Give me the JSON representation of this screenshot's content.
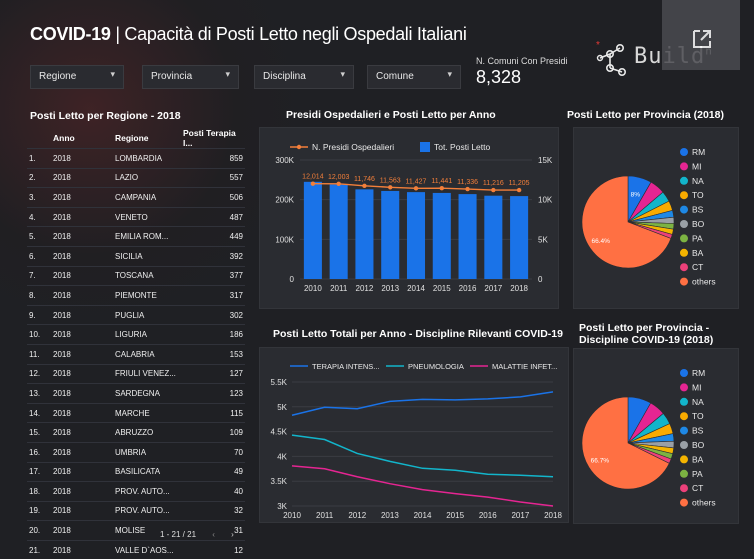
{
  "header": {
    "title_bold": "COVID-19",
    "title_rest": " | Capacità di Posti Letto negli Ospedali Italiani",
    "kpi_label": "N. Comuni Con Presidi",
    "kpi_value": "8,328",
    "logo_text": "Build",
    "logo_superscript": "n"
  },
  "filters": [
    {
      "label": "Regione"
    },
    {
      "label": "Provincia"
    },
    {
      "label": "Disciplina"
    },
    {
      "label": "Comune"
    }
  ],
  "table": {
    "title": "Posti Letto per Regione - 2018",
    "columns": [
      "Anno",
      "Regione",
      "Posti Terapia I..."
    ],
    "rows": [
      {
        "idx": "1.",
        "anno": "2018",
        "regione": "LOMBARDIA",
        "posti": "859"
      },
      {
        "idx": "2.",
        "anno": "2018",
        "regione": "LAZIO",
        "posti": "557"
      },
      {
        "idx": "3.",
        "anno": "2018",
        "regione": "CAMPANIA",
        "posti": "506"
      },
      {
        "idx": "4.",
        "anno": "2018",
        "regione": "VENETO",
        "posti": "487"
      },
      {
        "idx": "5.",
        "anno": "2018",
        "regione": "EMILIA ROM...",
        "posti": "449"
      },
      {
        "idx": "6.",
        "anno": "2018",
        "regione": "SICILIA",
        "posti": "392"
      },
      {
        "idx": "7.",
        "anno": "2018",
        "regione": "TOSCANA",
        "posti": "377"
      },
      {
        "idx": "8.",
        "anno": "2018",
        "regione": "PIEMONTE",
        "posti": "317"
      },
      {
        "idx": "9.",
        "anno": "2018",
        "regione": "PUGLIA",
        "posti": "302"
      },
      {
        "idx": "10.",
        "anno": "2018",
        "regione": "LIGURIA",
        "posti": "186"
      },
      {
        "idx": "11.",
        "anno": "2018",
        "regione": "CALABRIA",
        "posti": "153"
      },
      {
        "idx": "12.",
        "anno": "2018",
        "regione": "FRIULI VENEZ...",
        "posti": "127"
      },
      {
        "idx": "13.",
        "anno": "2018",
        "regione": "SARDEGNA",
        "posti": "123"
      },
      {
        "idx": "14.",
        "anno": "2018",
        "regione": "MARCHE",
        "posti": "115"
      },
      {
        "idx": "15.",
        "anno": "2018",
        "regione": "ABRUZZO",
        "posti": "109"
      },
      {
        "idx": "16.",
        "anno": "2018",
        "regione": "UMBRIA",
        "posti": "70"
      },
      {
        "idx": "17.",
        "anno": "2018",
        "regione": "BASILICATA",
        "posti": "49"
      },
      {
        "idx": "18.",
        "anno": "2018",
        "regione": "PROV. AUTO...",
        "posti": "40"
      },
      {
        "idx": "19.",
        "anno": "2018",
        "regione": "PROV. AUTO...",
        "posti": "32"
      },
      {
        "idx": "20.",
        "anno": "2018",
        "regione": "MOLISE",
        "posti": "31"
      },
      {
        "idx": "21.",
        "anno": "2018",
        "regione": "VALLE D`AOS...",
        "posti": "12"
      }
    ],
    "pager": "1 - 21 / 21",
    "prev_icon": "chevron-left-icon",
    "next_icon": "chevron-right-icon"
  },
  "chart_data": [
    {
      "type": "bar",
      "title": "Presidi Ospedalieri e Posti Letto per Anno",
      "categories": [
        "2010",
        "2011",
        "2012",
        "2013",
        "2014",
        "2015",
        "2016",
        "2017",
        "2018"
      ],
      "series": [
        {
          "name": "Tot. Posti Letto",
          "type": "bar",
          "axis": "left",
          "color": "#1a73e8",
          "values": [
            245000,
            238000,
            226000,
            222000,
            219000,
            217000,
            214000,
            210000,
            209000
          ]
        },
        {
          "name": "N. Presidi Ospedalieri",
          "type": "line",
          "axis": "right",
          "color": "#f37f3a",
          "values": [
            12014,
            12003,
            11746,
            11563,
            11427,
            11441,
            11336,
            11216,
            11205
          ],
          "labels": [
            "12,014",
            "12,003",
            "11,746",
            "11,563",
            "11,427",
            "11,441",
            "11,336",
            "11,216",
            "11,205"
          ]
        }
      ],
      "yleft_ticks": [
        "0",
        "100K",
        "200K",
        "300K"
      ],
      "yleft_lim": [
        0,
        300000
      ],
      "yright_ticks": [
        "0",
        "5K",
        "10K",
        "15K"
      ],
      "yright_lim": [
        0,
        15000
      ],
      "legend": "top"
    },
    {
      "type": "line",
      "title": "Posti Letto Totali per Anno - Discipline Rilevanti COVID-19",
      "x": [
        "2010",
        "2011",
        "2012",
        "2013",
        "2014",
        "2015",
        "2016",
        "2017",
        "2018"
      ],
      "series": [
        {
          "name": "TERAPIA INTENS...",
          "color": "#1a73e8",
          "values": [
            4830,
            4990,
            4960,
            5110,
            5150,
            5140,
            5160,
            5200,
            5300
          ]
        },
        {
          "name": "PNEUMOLOGIA",
          "color": "#12b5cb",
          "values": [
            4430,
            4340,
            4060,
            3900,
            3760,
            3720,
            3640,
            3620,
            3590
          ]
        },
        {
          "name": "MALATTIE INFET...",
          "color": "#e52592",
          "values": [
            3810,
            3750,
            3590,
            3450,
            3330,
            3250,
            3180,
            3080,
            3000
          ]
        }
      ],
      "y_ticks": [
        "3K",
        "3.5K",
        "4K",
        "4.5K",
        "5K",
        "5.5K"
      ],
      "ylim": [
        3000,
        5500
      ],
      "legend": "top"
    },
    {
      "type": "pie",
      "title": "Posti Letto per Provincia (2018)",
      "labels": [
        "RM",
        "MI",
        "NA",
        "TO",
        "BS",
        "BO",
        "PA",
        "BA",
        "CT",
        "others"
      ],
      "colors": [
        "#1a73e8",
        "#e52592",
        "#12b5cb",
        "#f9ab00",
        "#1e88e5",
        "#9aa0a6",
        "#7cb342",
        "#f4b400",
        "#ec407a",
        "#ff7043"
      ],
      "values": [
        8.0,
        5.2,
        3.6,
        3.3,
        2.3,
        2.1,
        1.9,
        1.8,
        1.4,
        66.4
      ],
      "data_labels": {
        "RM": "8%",
        "others": "66.4%"
      },
      "legend": "right"
    },
    {
      "type": "pie",
      "title": "Posti Letto per Provincia - Discipline COVID-19 (2018)",
      "labels": [
        "RM",
        "MI",
        "NA",
        "TO",
        "BS",
        "BO",
        "BA",
        "PA",
        "CT",
        "others"
      ],
      "colors": [
        "#1a73e8",
        "#e52592",
        "#12b5cb",
        "#f9ab00",
        "#1e88e5",
        "#9aa0a6",
        "#f4b400",
        "#7cb342",
        "#ec407a",
        "#ff7043"
      ],
      "values": [
        8.1,
        5.6,
        4.1,
        3.6,
        2.6,
        2.3,
        2.0,
        1.9,
        1.6,
        66.7
      ],
      "data_labels": {
        "others": "66.7%"
      },
      "legend": "right"
    }
  ]
}
